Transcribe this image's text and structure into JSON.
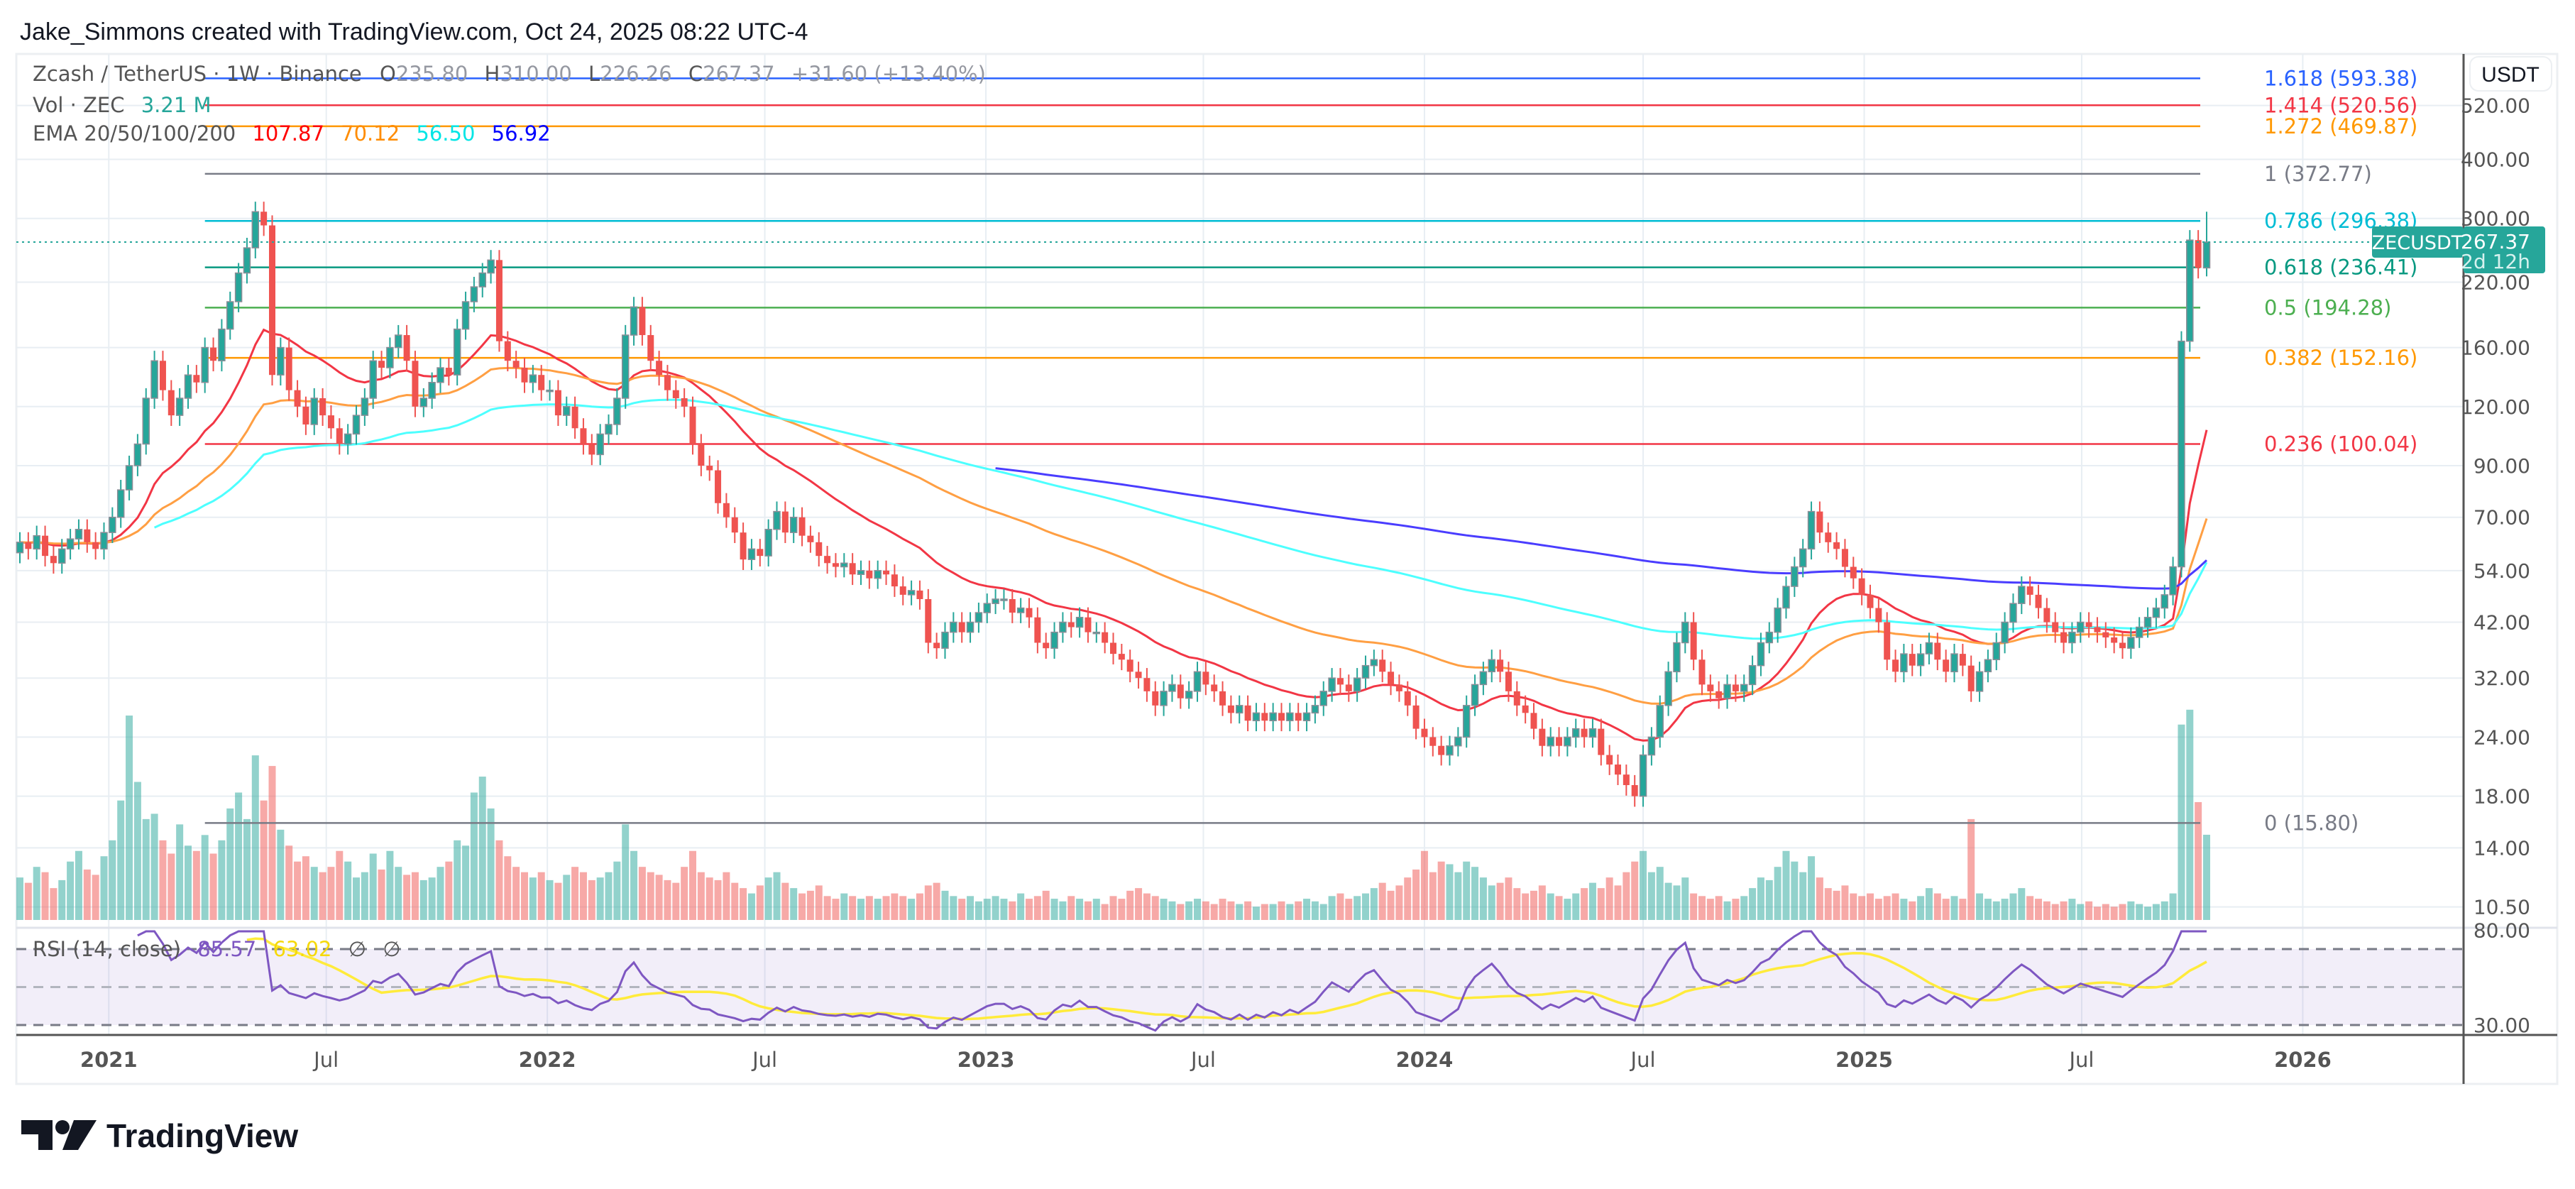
{
  "header": {
    "credit": "Jake_Simmons created with TradingView.com, Oct 24, 2025 08:22 UTC-4"
  },
  "legend": {
    "symbol": "Zcash / TetherUS · 1W · Binance",
    "o_label": "O",
    "o": "235.80",
    "h_label": "H",
    "h": "310.00",
    "l_label": "L",
    "l": "226.26",
    "c_label": "C",
    "c": "267.37",
    "change": "+31.60 (+13.40%)",
    "vol_label": "Vol · ZEC",
    "vol": "3.21 M",
    "ema_label": "EMA 20/50/100/200",
    "ema_values": [
      "107.87",
      "70.12",
      "56.50",
      "56.92"
    ],
    "ema_colors": [
      "#ff0000",
      "#ff8c00",
      "#00ffff",
      "#0000ff"
    ]
  },
  "rsi_legend": {
    "label": "RSI (14, close)",
    "rsi": "85.57",
    "ma": "63.02",
    "extra1": "∅",
    "extra2": "∅"
  },
  "price_axis": {
    "currency": "USDT",
    "ticks": [
      "520.00",
      "400.00",
      "300.00",
      "220.00",
      "160.00",
      "120.00",
      "90.00",
      "70.00",
      "54.00",
      "42.00",
      "32.00",
      "24.00",
      "18.00",
      "14.00",
      "10.50"
    ],
    "tick_values": [
      520,
      400,
      300,
      220,
      160,
      120,
      90,
      70,
      54,
      42,
      32,
      24,
      18,
      14,
      10.5
    ],
    "last_symbol": "ZECUSDT",
    "last_price": "267.37",
    "countdown": "2d 12h"
  },
  "rsi_axis": {
    "ticks": [
      "80.00",
      "30.00"
    ],
    "tick_values": [
      80,
      30
    ],
    "levels": [
      70,
      50,
      30
    ]
  },
  "time_axis": {
    "labels": [
      {
        "text": "2021",
        "date": "2021-01-01",
        "year": true
      },
      {
        "text": "Jul",
        "date": "2021-07-01",
        "year": false
      },
      {
        "text": "2022",
        "date": "2022-01-01",
        "year": true
      },
      {
        "text": "Jul",
        "date": "2022-07-01",
        "year": false
      },
      {
        "text": "2023",
        "date": "2023-01-01",
        "year": true
      },
      {
        "text": "Jul",
        "date": "2023-07-01",
        "year": false
      },
      {
        "text": "2024",
        "date": "2024-01-01",
        "year": true
      },
      {
        "text": "Jul",
        "date": "2024-07-01",
        "year": false
      },
      {
        "text": "2025",
        "date": "2025-01-01",
        "year": true
      },
      {
        "text": "Jul",
        "date": "2025-07-01",
        "year": false
      },
      {
        "text": "2026",
        "date": "2026-01-01",
        "year": true
      }
    ]
  },
  "logo": {
    "text": "TradingView"
  },
  "colors": {
    "up": "#26a69a",
    "down": "#ef5350",
    "rsi": "#7e57c2",
    "rsi_ma": "#ffeb3b",
    "accent": "#26a69a"
  },
  "chart_data": {
    "type": "candlestick",
    "scale": "log",
    "interval": "1W",
    "x_start": "2020-10-19",
    "ylim": [
      10.5,
      620
    ],
    "grid": true,
    "closes": [
      62,
      60,
      64,
      58,
      56,
      60,
      63,
      66,
      62,
      60,
      65,
      70,
      80,
      90,
      100,
      125,
      150,
      130,
      115,
      125,
      140,
      135,
      160,
      150,
      175,
      200,
      230,
      260,
      310,
      290,
      140,
      160,
      130,
      120,
      110,
      125,
      115,
      108,
      100,
      105,
      115,
      125,
      150,
      145,
      160,
      170,
      150,
      120,
      125,
      135,
      145,
      140,
      175,
      200,
      215,
      230,
      245,
      165,
      150,
      145,
      135,
      140,
      130,
      130,
      115,
      120,
      108,
      100,
      95,
      105,
      110,
      125,
      170,
      195,
      170,
      150,
      140,
      130,
      125,
      120,
      100,
      90,
      88,
      75,
      70,
      65,
      57,
      60,
      58,
      66,
      72,
      65,
      70,
      64,
      62,
      58,
      56,
      55,
      56,
      53,
      54,
      52,
      54,
      53,
      50,
      48,
      49,
      47,
      38,
      37,
      40,
      42,
      40,
      42,
      44,
      46,
      47,
      47,
      44,
      45,
      43,
      38,
      37,
      40,
      42,
      41,
      43,
      40,
      40,
      38,
      36,
      35,
      33,
      32,
      30,
      28,
      30,
      31,
      29,
      30,
      33,
      31,
      30,
      28,
      27,
      28,
      26,
      27,
      26,
      27,
      26,
      27,
      26,
      27,
      28,
      30,
      32,
      31,
      30,
      32,
      34,
      35,
      33,
      31,
      30,
      28,
      25,
      24,
      23,
      22,
      23,
      24,
      28,
      31,
      33,
      35,
      33,
      30,
      28,
      27,
      25,
      23,
      24,
      23,
      24,
      25,
      24,
      25,
      22,
      21,
      20,
      19,
      18,
      22,
      24,
      28,
      33,
      38,
      42,
      35,
      31,
      30,
      29,
      31,
      30,
      31,
      34,
      38,
      40,
      45,
      50,
      55,
      60,
      72,
      65,
      62,
      60,
      55,
      52,
      48,
      45,
      42,
      35,
      33,
      36,
      34,
      36,
      38,
      35,
      33,
      36,
      34,
      30,
      33,
      35,
      38,
      42,
      46,
      50,
      48,
      45,
      42,
      40,
      38,
      40,
      42,
      41,
      40,
      39,
      38,
      37,
      39,
      41,
      43,
      45,
      48,
      55,
      165,
      270,
      235.8,
      267.37
    ],
    "last_candle": {
      "o": 235.8,
      "h": 310.0,
      "l": 226.26,
      "c": 267.37
    },
    "volume_unit": "M ZEC",
    "volume": [
      1.6,
      1.4,
      2.0,
      1.8,
      1.2,
      1.5,
      2.2,
      2.6,
      1.9,
      1.7,
      2.4,
      3.0,
      4.5,
      7.7,
      5.2,
      3.8,
      4.0,
      3.0,
      2.5,
      3.6,
      2.8,
      2.6,
      3.2,
      2.5,
      3.0,
      4.2,
      4.8,
      3.8,
      6.2,
      4.5,
      5.8,
      3.4,
      2.8,
      2.2,
      2.4,
      2.0,
      1.8,
      2.0,
      2.6,
      2.2,
      1.6,
      1.8,
      2.5,
      1.9,
      2.6,
      2.0,
      1.7,
      1.8,
      1.5,
      1.6,
      2.0,
      2.2,
      3.0,
      2.8,
      4.8,
      5.4,
      4.2,
      3.0,
      2.4,
      2.0,
      1.8,
      1.6,
      1.8,
      1.5,
      1.4,
      1.7,
      2.0,
      1.8,
      1.5,
      1.6,
      1.8,
      2.2,
      3.6,
      2.6,
      2.0,
      1.8,
      1.7,
      1.5,
      1.4,
      2.0,
      2.6,
      1.8,
      1.6,
      1.5,
      1.8,
      1.4,
      1.2,
      1.0,
      1.3,
      1.6,
      1.8,
      1.4,
      1.2,
      1.0,
      1.1,
      1.3,
      0.9,
      0.8,
      1.0,
      0.9,
      0.8,
      0.9,
      0.8,
      0.9,
      1.0,
      0.9,
      0.8,
      1.0,
      1.3,
      1.4,
      1.1,
      0.9,
      0.8,
      0.9,
      0.7,
      0.8,
      0.9,
      0.8,
      0.7,
      1.0,
      0.8,
      0.9,
      1.1,
      0.8,
      0.7,
      0.9,
      0.8,
      0.7,
      0.8,
      0.6,
      0.9,
      0.8,
      1.1,
      1.2,
      1.0,
      0.9,
      0.8,
      0.7,
      0.6,
      0.7,
      0.8,
      0.7,
      0.6,
      0.8,
      0.7,
      0.6,
      0.7,
      0.5,
      0.6,
      0.6,
      0.7,
      0.6,
      0.7,
      0.8,
      0.7,
      0.6,
      0.9,
      1.0,
      0.8,
      0.9,
      1.0,
      1.2,
      1.4,
      1.1,
      1.3,
      1.6,
      1.9,
      2.6,
      1.8,
      2.2,
      2.1,
      1.8,
      2.2,
      2.0,
      1.6,
      1.3,
      1.4,
      1.6,
      1.2,
      1.0,
      1.1,
      1.3,
      1.0,
      0.9,
      0.8,
      1.0,
      1.2,
      1.4,
      1.2,
      1.6,
      1.3,
      1.8,
      2.2,
      2.6,
      1.8,
      2.0,
      1.4,
      1.3,
      1.6,
      1.0,
      0.9,
      0.8,
      0.9,
      0.7,
      0.8,
      0.9,
      1.2,
      1.6,
      1.5,
      2.0,
      2.6,
      2.2,
      1.8,
      2.4,
      1.6,
      1.2,
      1.1,
      1.3,
      1.0,
      0.9,
      1.0,
      0.8,
      0.9,
      1.0,
      0.8,
      0.7,
      0.9,
      1.2,
      1.0,
      0.8,
      0.9,
      0.8,
      3.8,
      1.0,
      0.8,
      0.7,
      0.8,
      1.0,
      1.2,
      0.9,
      0.8,
      0.7,
      0.6,
      0.7,
      0.8,
      0.6,
      0.7,
      0.5,
      0.6,
      0.5,
      0.6,
      0.7,
      0.6,
      0.5,
      0.6,
      0.7,
      1.0,
      7.36,
      7.92,
      4.44,
      3.21
    ],
    "ema_periods": [
      20,
      50,
      100,
      200
    ],
    "rsi_period": 14,
    "rsi_ma_period": 14,
    "fib_levels": [
      {
        "label": "1.618 (593.38)",
        "value": 593.38,
        "color": "#2962ff"
      },
      {
        "label": "1.414 (520.56)",
        "value": 520.56,
        "color": "#f23645"
      },
      {
        "label": "1.272 (469.87)",
        "value": 469.87,
        "color": "#ff9800"
      },
      {
        "label": "1 (372.77)",
        "value": 372.77,
        "color": "#787b86"
      },
      {
        "label": "0.786 (296.38)",
        "value": 296.38,
        "color": "#00bcd4"
      },
      {
        "label": "0.618 (236.41)",
        "value": 236.41,
        "color": "#089981"
      },
      {
        "label": "0.5 (194.28)",
        "value": 194.28,
        "color": "#4caf50"
      },
      {
        "label": "0.382 (152.16)",
        "value": 152.16,
        "color": "#ff9800"
      },
      {
        "label": "0.236 (100.04)",
        "value": 100.04,
        "color": "#f23645"
      },
      {
        "label": "0 (15.80)",
        "value": 15.8,
        "color": "#787b86"
      }
    ],
    "fib_start": "2021-03-22"
  }
}
